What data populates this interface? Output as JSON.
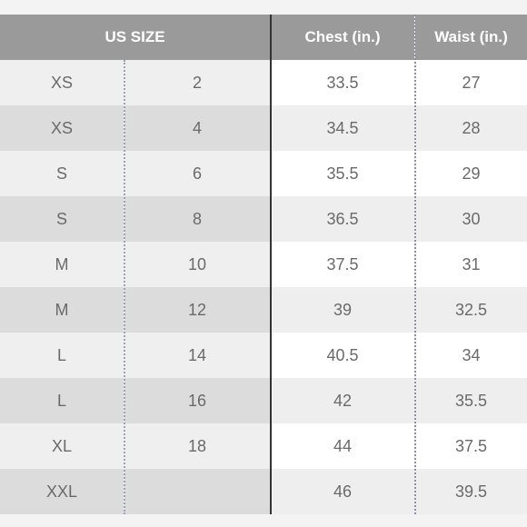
{
  "header": {
    "us_size": "US SIZE",
    "chest": "Chest (in.)",
    "waist": "Waist (in.)"
  },
  "rows": [
    {
      "size": "XS",
      "num": "2",
      "chest": "33.5",
      "waist": "27"
    },
    {
      "size": "XS",
      "num": "4",
      "chest": "34.5",
      "waist": "28"
    },
    {
      "size": "S",
      "num": "6",
      "chest": "35.5",
      "waist": "29"
    },
    {
      "size": "S",
      "num": "8",
      "chest": "36.5",
      "waist": "30"
    },
    {
      "size": "M",
      "num": "10",
      "chest": "37.5",
      "waist": "31"
    },
    {
      "size": "M",
      "num": "12",
      "chest": "39",
      "waist": "32.5"
    },
    {
      "size": "L",
      "num": "14",
      "chest": "40.5",
      "waist": "34"
    },
    {
      "size": "L",
      "num": "16",
      "chest": "42",
      "waist": "35.5"
    },
    {
      "size": "XL",
      "num": "18",
      "chest": "44",
      "waist": "37.5"
    },
    {
      "size": "XXL",
      "num": "",
      "chest": "46",
      "waist": "39.5"
    }
  ],
  "colors": {
    "header_bg": "#9a9a9a",
    "header_text": "#ffffff",
    "cell_text": "#6a6a6a"
  }
}
